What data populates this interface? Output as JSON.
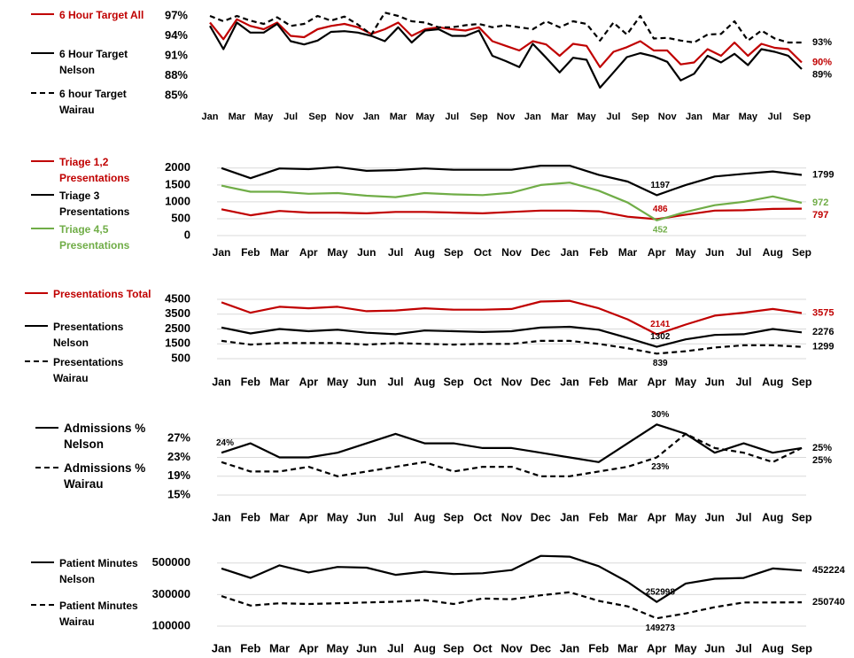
{
  "chart_data": [
    {
      "type": "line",
      "categories": [
        "Jan",
        null,
        "Mar",
        null,
        "May",
        null,
        "Jul",
        null,
        "Sep",
        null,
        "Nov",
        null,
        "Jan",
        null,
        "Mar",
        null,
        "May",
        null,
        "Jul",
        null,
        "Sep",
        null,
        "Nov",
        null,
        "Jan",
        null,
        "Mar",
        null,
        "May",
        null,
        "Jul",
        null,
        "Sep",
        null,
        "Nov",
        null,
        "Jan",
        null,
        "Mar",
        null,
        "May",
        null,
        "Jul",
        null,
        "Sep"
      ],
      "ylim": [
        85,
        98
      ],
      "yticks": [
        {
          "value": 85,
          "label": "85%"
        },
        {
          "value": 88,
          "label": "88%"
        },
        {
          "value": 91,
          "label": "91%"
        },
        {
          "value": 94,
          "label": "94%"
        },
        {
          "value": 97,
          "label": "97%"
        }
      ],
      "grid": false,
      "series": [
        {
          "name": "6 Hour Target All",
          "color": "#c00000",
          "dash": false,
          "values": [
            96,
            93.5,
            96.5,
            95.5,
            95,
            96,
            94,
            93.8,
            95,
            95.5,
            95.8,
            95.3,
            94.3,
            95,
            96,
            94,
            95,
            95.3,
            95,
            94.8,
            95.3,
            93.2,
            92.5,
            91.8,
            93.2,
            92.7,
            91,
            92.8,
            92.5,
            89.3,
            91.6,
            92.3,
            93.2,
            91.8,
            91.8,
            89.7,
            90,
            92,
            91,
            93,
            91,
            92.8,
            92.2,
            92,
            90
          ],
          "value_labels": [
            null,
            null,
            null,
            null,
            null,
            null,
            null,
            null,
            null,
            null,
            null,
            null,
            null,
            null,
            null,
            null,
            null,
            null,
            null,
            null,
            null,
            null,
            null,
            null,
            null,
            null,
            null,
            null,
            null,
            null,
            null,
            null,
            null,
            null,
            null,
            null,
            null,
            null,
            null,
            null,
            null,
            null,
            null,
            null,
            "90%"
          ]
        },
        {
          "name": "6 Hour Target Nelson",
          "color": "#000000",
          "dash": false,
          "values": [
            95.5,
            92,
            96,
            94.5,
            94.5,
            95.8,
            93.2,
            92.7,
            93.3,
            94.6,
            94.7,
            94.5,
            94,
            93.2,
            95.3,
            93,
            94.8,
            95,
            94,
            94,
            94.8,
            91,
            90.2,
            89.3,
            92.8,
            90.7,
            88.5,
            90.7,
            90.4,
            86.2,
            88.5,
            90.8,
            91.4,
            90.9,
            90.1,
            87.3,
            88.3,
            91,
            90,
            91.3,
            89.6,
            92,
            91.6,
            91,
            89
          ],
          "value_labels": [
            null,
            null,
            null,
            null,
            null,
            null,
            null,
            null,
            null,
            null,
            null,
            null,
            null,
            null,
            null,
            null,
            null,
            null,
            null,
            null,
            null,
            null,
            null,
            null,
            null,
            null,
            null,
            null,
            null,
            null,
            null,
            null,
            null,
            null,
            null,
            null,
            null,
            null,
            null,
            null,
            null,
            null,
            null,
            null,
            "89%"
          ]
        },
        {
          "name": "6 hour Target Wairau",
          "color": "#000000",
          "dash": true,
          "values": [
            97,
            96.2,
            97,
            96.3,
            95.8,
            96.8,
            95.5,
            95.8,
            97,
            96.3,
            96.9,
            95.7,
            94.2,
            97.5,
            97,
            96.2,
            96,
            95.3,
            95.3,
            95.6,
            95.8,
            95.3,
            95.6,
            95.3,
            95,
            96.2,
            95.3,
            96.2,
            95.8,
            93.3,
            96,
            94.2,
            97,
            93.6,
            93.7,
            93.3,
            93,
            94.2,
            94.3,
            96.2,
            93.3,
            94.8,
            93.6,
            93,
            93
          ],
          "value_labels": [
            null,
            null,
            null,
            null,
            null,
            null,
            null,
            null,
            null,
            null,
            null,
            null,
            null,
            null,
            null,
            null,
            null,
            null,
            null,
            null,
            null,
            null,
            null,
            null,
            null,
            null,
            null,
            null,
            null,
            null,
            null,
            null,
            null,
            null,
            null,
            null,
            null,
            null,
            null,
            null,
            null,
            null,
            null,
            null,
            "93%"
          ]
        }
      ]
    },
    {
      "type": "line",
      "categories": [
        "Jan",
        "Feb",
        "Mar",
        "Apr",
        "May",
        "Jun",
        "Jul",
        "Aug",
        "Sep",
        "Oct",
        "Nov",
        "Dec",
        "Jan",
        "Feb",
        "Mar",
        "Apr",
        "May",
        "Jun",
        "Jul",
        "Aug",
        "Sep"
      ],
      "ylim": [
        0,
        2100
      ],
      "yticks": [
        0,
        500,
        1000,
        1500,
        2000
      ],
      "grid": true,
      "series": [
        {
          "name": "Triage 1,2 Presentations",
          "color": "#c00000",
          "dash": false,
          "values": [
            780,
            600,
            730,
            680,
            680,
            660,
            700,
            700,
            680,
            660,
            700,
            740,
            740,
            720,
            560,
            486,
            620,
            740,
            750,
            790,
            797
          ],
          "value_labels": [
            null,
            null,
            null,
            null,
            null,
            null,
            null,
            null,
            null,
            null,
            null,
            null,
            null,
            null,
            null,
            "486",
            null,
            null,
            null,
            null,
            "797"
          ]
        },
        {
          "name": "Triage 3 Presentations",
          "color": "#000000",
          "dash": false,
          "values": [
            2000,
            1700,
            1990,
            1970,
            2030,
            1920,
            1940,
            1990,
            1950,
            1950,
            1950,
            2070,
            2070,
            1800,
            1600,
            1197,
            1500,
            1750,
            1830,
            1900,
            1799
          ],
          "value_labels": [
            null,
            null,
            null,
            null,
            null,
            null,
            null,
            null,
            null,
            null,
            null,
            null,
            null,
            null,
            null,
            "1197",
            null,
            null,
            null,
            null,
            "1799"
          ]
        },
        {
          "name": "Triage 4,5 Presentations",
          "color": "#70ad47",
          "dash": false,
          "values": [
            1480,
            1300,
            1300,
            1240,
            1260,
            1180,
            1140,
            1260,
            1220,
            1200,
            1270,
            1500,
            1570,
            1330,
            980,
            452,
            700,
            900,
            1000,
            1160,
            972
          ],
          "value_labels": [
            null,
            null,
            null,
            null,
            null,
            null,
            null,
            null,
            null,
            null,
            null,
            null,
            null,
            null,
            null,
            "452",
            null,
            null,
            null,
            null,
            "972"
          ]
        }
      ]
    },
    {
      "type": "line",
      "categories": [
        "Jan",
        "Feb",
        "Mar",
        "Apr",
        "May",
        "Jun",
        "Jul",
        "Aug",
        "Sep",
        "Oct",
        "Nov",
        "Dec",
        "Jan",
        "Feb",
        "Mar",
        "Apr",
        "May",
        "Jun",
        "Jul",
        "Aug",
        "Sep"
      ],
      "ylim": [
        500,
        4500
      ],
      "yticks": [
        500,
        1500,
        2500,
        3500,
        4500
      ],
      "grid": true,
      "series": [
        {
          "name": "Presentations Total",
          "color": "#c00000",
          "dash": false,
          "values": [
            4300,
            3600,
            4000,
            3900,
            4000,
            3700,
            3750,
            3900,
            3800,
            3800,
            3850,
            4350,
            4400,
            3900,
            3150,
            2141,
            2800,
            3400,
            3600,
            3850,
            3575
          ],
          "value_labels": [
            null,
            null,
            null,
            null,
            null,
            null,
            null,
            null,
            null,
            null,
            null,
            null,
            null,
            null,
            null,
            "2141",
            null,
            null,
            null,
            null,
            "3575"
          ]
        },
        {
          "name": "Presentations Nelson",
          "color": "#000000",
          "dash": false,
          "values": [
            2600,
            2200,
            2500,
            2350,
            2450,
            2250,
            2150,
            2400,
            2350,
            2300,
            2350,
            2600,
            2650,
            2450,
            1900,
            1302,
            1800,
            2100,
            2150,
            2500,
            2276
          ],
          "value_labels": [
            null,
            null,
            null,
            null,
            null,
            null,
            null,
            null,
            null,
            null,
            null,
            null,
            null,
            null,
            null,
            "1302",
            null,
            null,
            null,
            null,
            "2276"
          ]
        },
        {
          "name": "Presentations Wairau",
          "color": "#000000",
          "dash": true,
          "values": [
            1700,
            1450,
            1550,
            1550,
            1550,
            1450,
            1550,
            1500,
            1450,
            1500,
            1500,
            1700,
            1700,
            1500,
            1200,
            839,
            1000,
            1250,
            1400,
            1400,
            1299
          ],
          "value_labels": [
            null,
            null,
            null,
            null,
            null,
            null,
            null,
            null,
            null,
            null,
            null,
            null,
            null,
            null,
            null,
            "839",
            null,
            null,
            null,
            null,
            "1299"
          ]
        }
      ]
    },
    {
      "type": "line",
      "categories": [
        "Jan",
        "Feb",
        "Mar",
        "Apr",
        "May",
        "Jun",
        "Jul",
        "Aug",
        "Sep",
        "Oct",
        "Nov",
        "Dec",
        "Jan",
        "Feb",
        "Mar",
        "Apr",
        "May",
        "Jun",
        "Jul",
        "Aug",
        "Sep"
      ],
      "ylim": [
        15,
        31
      ],
      "yticks": [
        {
          "value": 15,
          "label": "15%"
        },
        {
          "value": 19,
          "label": "19%"
        },
        {
          "value": 23,
          "label": "23%"
        },
        {
          "value": 27,
          "label": "27%"
        }
      ],
      "grid": true,
      "series": [
        {
          "name": "Admissions % Nelson",
          "color": "#000000",
          "dash": false,
          "values": [
            24,
            26,
            23,
            23,
            24,
            26,
            28,
            26,
            26,
            25,
            25,
            24,
            23,
            22,
            26,
            30,
            28,
            24,
            26,
            24,
            25
          ],
          "value_labels": [
            "24%",
            null,
            null,
            null,
            null,
            null,
            null,
            null,
            null,
            null,
            null,
            null,
            null,
            null,
            null,
            "30%",
            null,
            null,
            null,
            null,
            "25%"
          ]
        },
        {
          "name": "Admissions % Wairau",
          "color": "#000000",
          "dash": true,
          "values": [
            22,
            20,
            20,
            21,
            19,
            20,
            21,
            22,
            20,
            21,
            21,
            19,
            19,
            20,
            21,
            23,
            28,
            25,
            24,
            22,
            25
          ],
          "value_labels": [
            null,
            null,
            null,
            null,
            null,
            null,
            null,
            null,
            null,
            null,
            null,
            null,
            null,
            null,
            null,
            "23%",
            null,
            null,
            null,
            null,
            "25%"
          ]
        }
      ]
    },
    {
      "type": "line",
      "categories": [
        "Jan",
        "Feb",
        "Mar",
        "Apr",
        "May",
        "Jun",
        "Jul",
        "Aug",
        "Sep",
        "Oct",
        "Nov",
        "Dec",
        "Jan",
        "Feb",
        "Mar",
        "Apr",
        "May",
        "Jun",
        "Jul",
        "Aug",
        "Sep"
      ],
      "ylim": [
        100000,
        560000
      ],
      "yticks": [
        100000,
        300000,
        500000
      ],
      "grid": true,
      "series": [
        {
          "name": "Patient Minutes Nelson",
          "color": "#000000",
          "dash": false,
          "values": [
            465000,
            405000,
            485000,
            440000,
            475000,
            470000,
            425000,
            445000,
            430000,
            435000,
            455000,
            545000,
            540000,
            480000,
            380000,
            252998,
            370000,
            400000,
            405000,
            465000,
            452224
          ],
          "value_labels": [
            null,
            null,
            null,
            null,
            null,
            null,
            null,
            null,
            null,
            null,
            null,
            null,
            null,
            null,
            null,
            "252998",
            null,
            null,
            null,
            null,
            "452224"
          ]
        },
        {
          "name": "Patient Minutes Wairau",
          "color": "#000000",
          "dash": true,
          "values": [
            290000,
            230000,
            245000,
            240000,
            245000,
            250000,
            255000,
            265000,
            240000,
            275000,
            270000,
            295000,
            315000,
            260000,
            225000,
            149273,
            180000,
            220000,
            250000,
            250000,
            250740
          ],
          "value_labels": [
            null,
            null,
            null,
            null,
            null,
            null,
            null,
            null,
            null,
            null,
            null,
            null,
            null,
            null,
            null,
            "149273",
            null,
            null,
            null,
            null,
            "250740"
          ]
        }
      ]
    }
  ]
}
